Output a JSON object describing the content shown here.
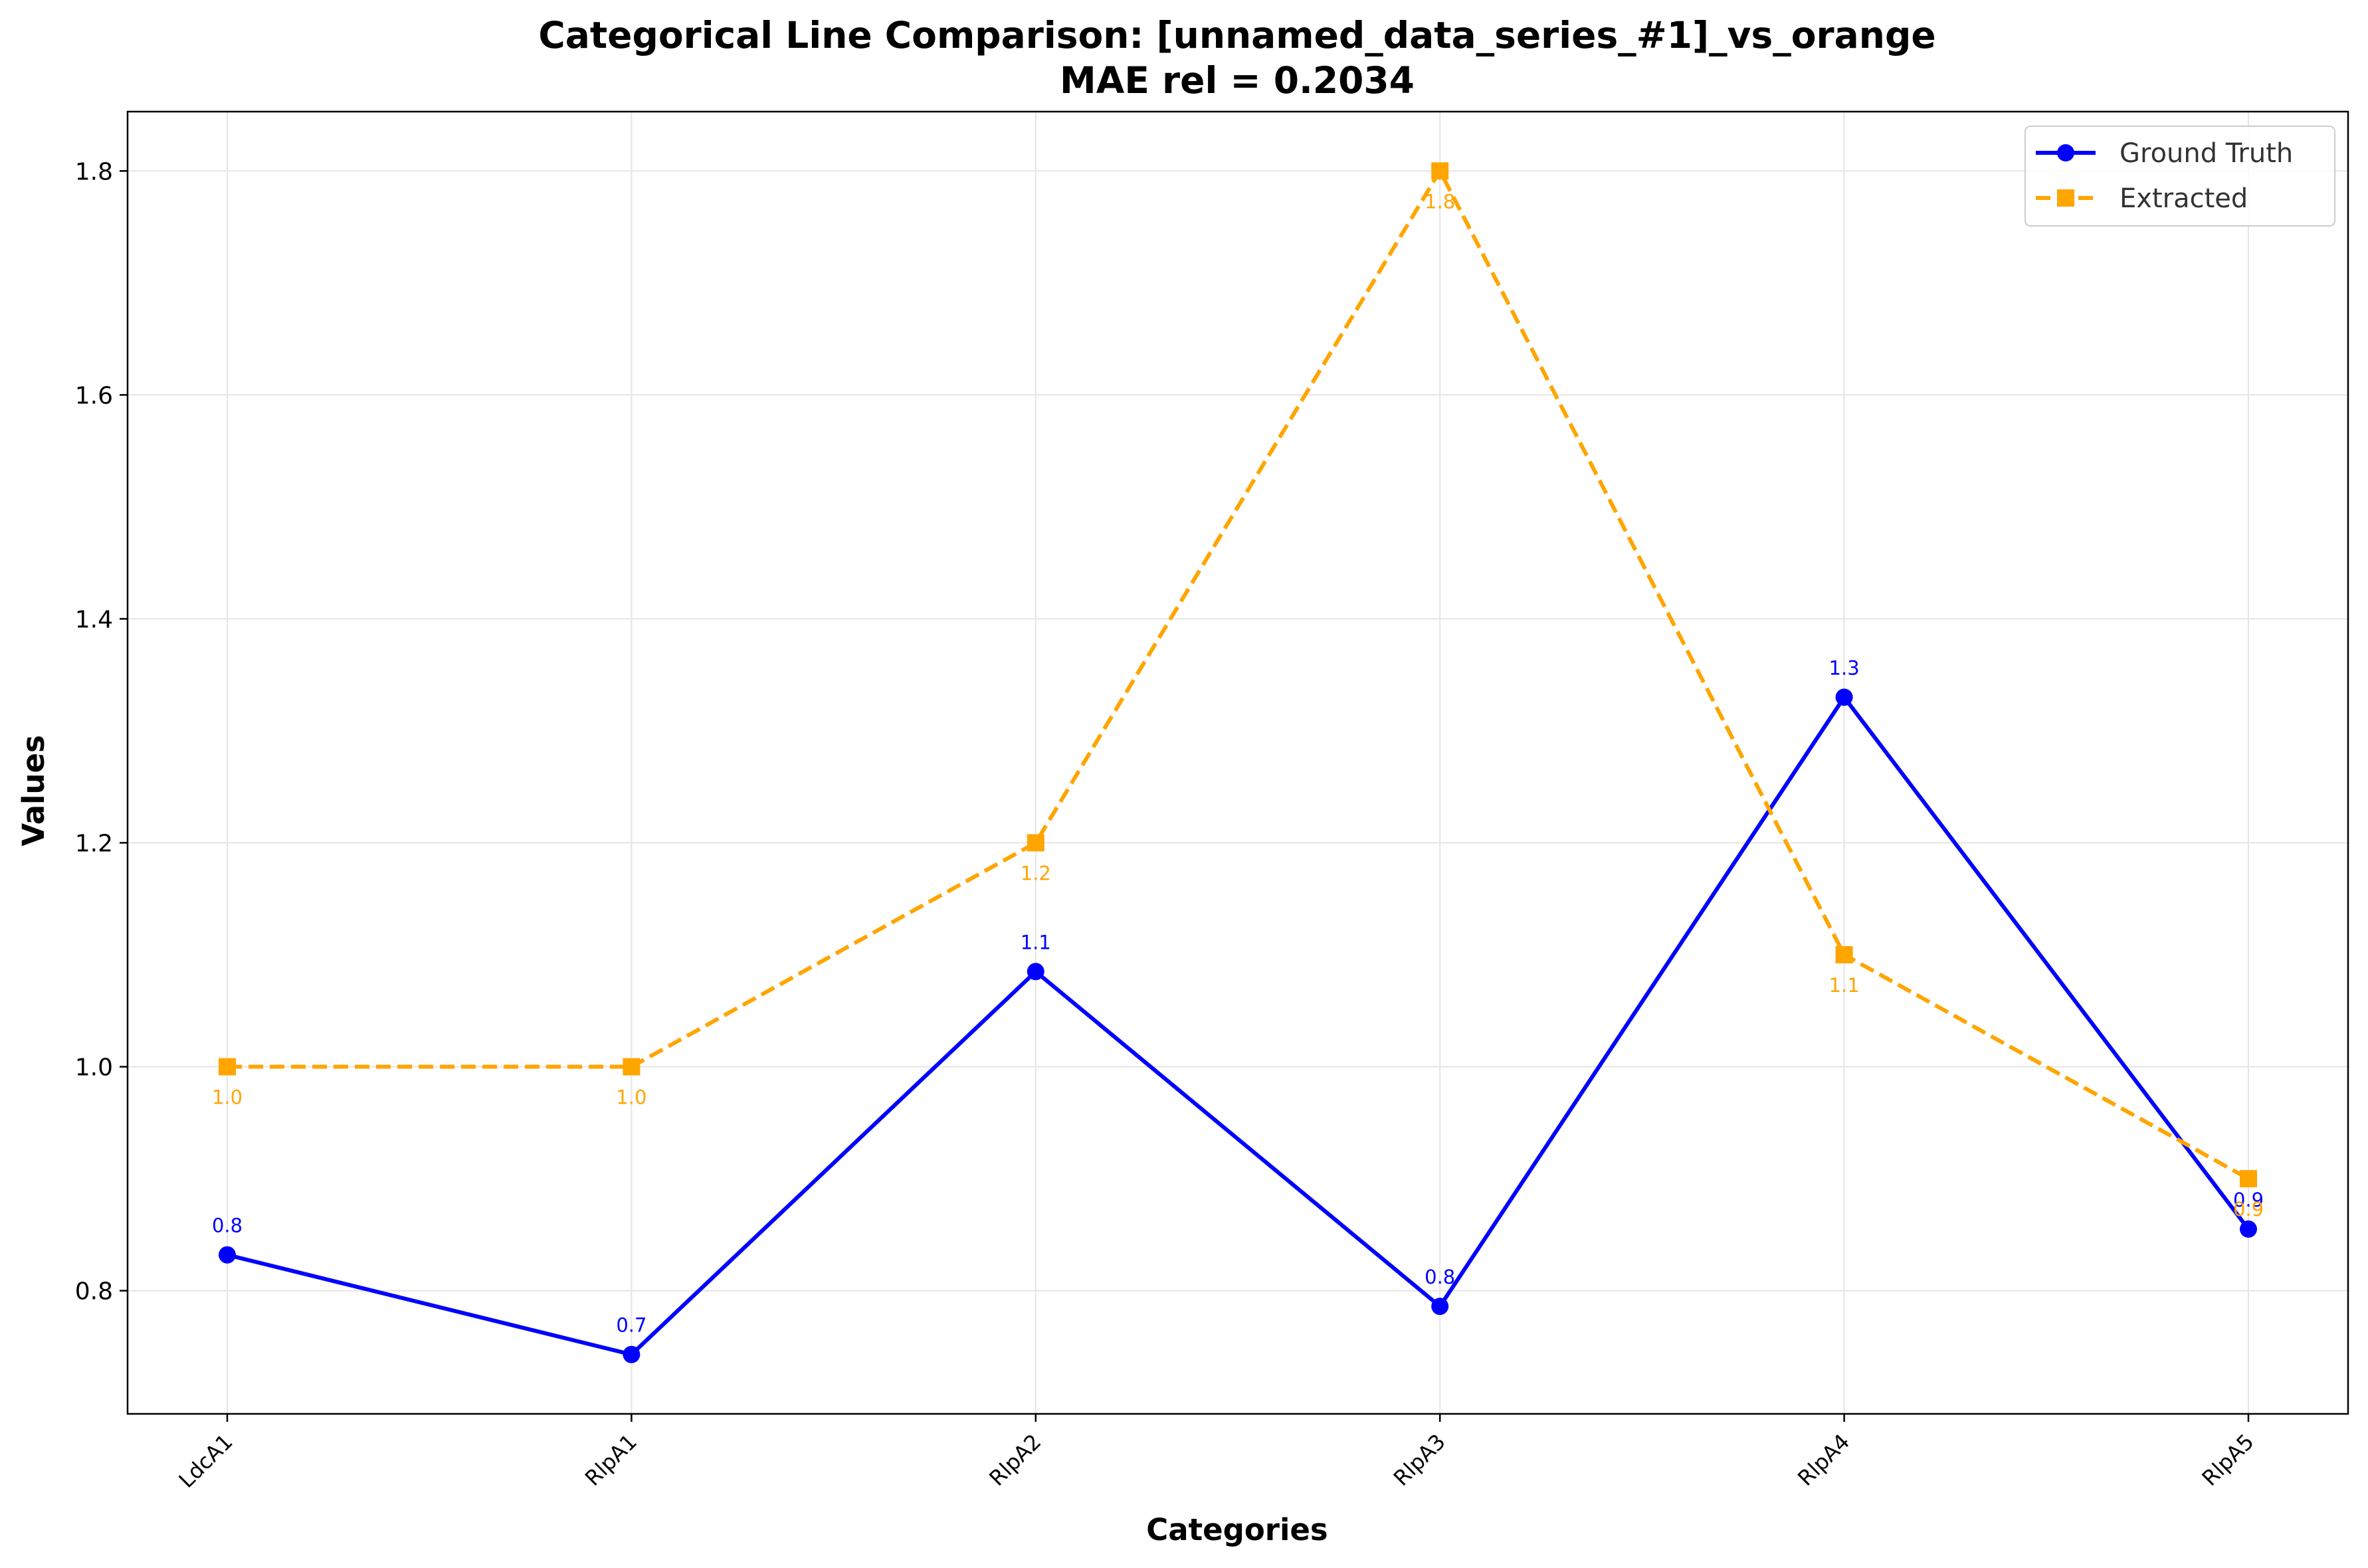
{
  "chart_data": {
    "type": "line",
    "title": "Categorical Line Comparison: [unnamed_data_series_#1]_vs_orange",
    "subtitle": "MAE rel = 0.2034",
    "xlabel": "Categories",
    "ylabel": "Values",
    "categories": [
      "LdcA1",
      "RlpA1",
      "RlpA2",
      "RlpA3",
      "RlpA4",
      "RlpA5"
    ],
    "ylim": [
      0.69,
      1.853
    ],
    "yticks": [
      0.8,
      1.0,
      1.2,
      1.4,
      1.6,
      1.8
    ],
    "ytick_labels": [
      "0.8",
      "1.0",
      "1.2",
      "1.4",
      "1.6",
      "1.8"
    ],
    "grid": true,
    "legend_position": "top-right",
    "series": [
      {
        "name": "Ground Truth",
        "color": "#0000ff",
        "line_style": "solid",
        "marker": "circle",
        "values": [
          0.832,
          0.743,
          1.085,
          0.786,
          1.33,
          0.855
        ],
        "labels": [
          "0.8",
          "0.7",
          "1.1",
          "0.8",
          "1.3",
          "0.9"
        ],
        "label_position": "above"
      },
      {
        "name": "Extracted",
        "color": "#ffa500",
        "line_style": "dashed",
        "marker": "square",
        "values": [
          1.0,
          1.0,
          1.2,
          1.8,
          1.1,
          0.9
        ],
        "labels": [
          "1.0",
          "1.0",
          "1.2",
          "1.8",
          "1.1",
          "0.9"
        ],
        "label_position": "below"
      }
    ]
  }
}
